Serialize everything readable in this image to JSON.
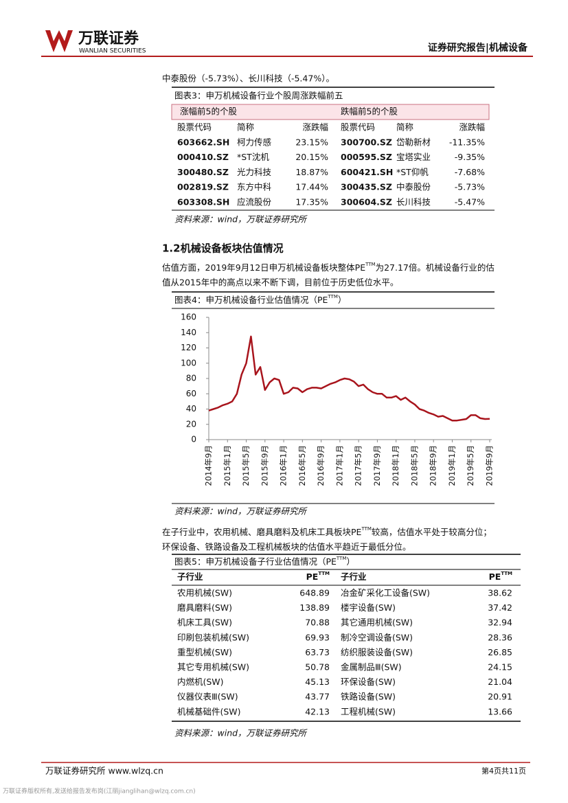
{
  "header": {
    "company": "万联证券",
    "company_en": "WANLIAN SECURITIES",
    "report": "证券研究报告",
    "sector": "机械设备"
  },
  "intro": "中泰股份（-5.73%）、长川科技（-5.47%）。",
  "table3": {
    "title": "图表3：申万机械设备行业个股周涨跌幅前五",
    "groups": [
      "涨幅前5的个股",
      "跌幅前5的个股"
    ],
    "columns": [
      "股票代码",
      "简称",
      "涨跌幅",
      "股票代码",
      "简称",
      "涨跌幅"
    ],
    "rows": [
      [
        "603662.SH",
        "柯力传感",
        "23.15%",
        "300700.SZ",
        "岱勒新材",
        "-11.35%"
      ],
      [
        "000410.SZ",
        "*ST沈机",
        "20.15%",
        "000595.SZ",
        "宝塔实业",
        "-9.35%"
      ],
      [
        "300480.SZ",
        "光力科技",
        "18.87%",
        "600421.SH",
        "*ST仰帆",
        "-7.68%"
      ],
      [
        "002819.SZ",
        "东方中科",
        "17.44%",
        "300435.SZ",
        "中泰股份",
        "-5.73%"
      ],
      [
        "603308.SH",
        "应流股份",
        "17.35%",
        "300604.SZ",
        "长川科技",
        "-5.47%"
      ]
    ],
    "source": "资料来源：wind，万联证券研究所"
  },
  "section": {
    "heading": "1.2机械设备板块估值情况",
    "para1": [
      "估值方面，2019年9月12日申万机械设备板块整体PE",
      "TTM",
      "为27.17倍。机械设备行业的估",
      "值从2015年中的高点以来不断下调，目前位于历史低位水平。"
    ]
  },
  "figure4": {
    "title": [
      "图表4：申万机械设备行业估值情况（PE",
      "TTM",
      "）"
    ],
    "source": "资料来源：wind，万联证券研究所"
  },
  "chart_data": {
    "type": "line",
    "color": "#a8141c",
    "categories": [
      "2014年9月",
      null,
      null,
      null,
      "2015年1月",
      null,
      null,
      null,
      "2015年5月",
      null,
      null,
      null,
      "2015年9月",
      null,
      null,
      null,
      "2016年1月",
      null,
      null,
      null,
      "2016年5月",
      null,
      null,
      null,
      "2016年9月",
      null,
      null,
      null,
      "2017年1月",
      null,
      null,
      null,
      "2017年5月",
      null,
      null,
      null,
      "2017年9月",
      null,
      null,
      null,
      "2018年1月",
      null,
      null,
      null,
      "2018年5月",
      null,
      null,
      null,
      "2018年9月",
      null,
      null,
      null,
      "2019年1月",
      null,
      null,
      null,
      "2019年5月",
      null,
      null,
      null,
      "2019年9月"
    ],
    "values": [
      38,
      40,
      42,
      45,
      47,
      50,
      60,
      85,
      100,
      135,
      85,
      95,
      65,
      75,
      80,
      78,
      60,
      62,
      68,
      67,
      62,
      66,
      68,
      68,
      67,
      70,
      73,
      75,
      78,
      80,
      79,
      76,
      70,
      72,
      66,
      62,
      60,
      60,
      55,
      55,
      57,
      52,
      55,
      50,
      46,
      40,
      38,
      35,
      33,
      30,
      31,
      28,
      25,
      25,
      26,
      27,
      32,
      32,
      28,
      27,
      27.17
    ],
    "ylim": [
      0,
      160
    ],
    "yticks": [
      0,
      20,
      40,
      60,
      80,
      100,
      120,
      140,
      160
    ]
  },
  "para2": [
    "在子行业中，农用机械、磨具磨料及机床工具板块PE",
    "TTM",
    "较高，估值水平处于较高分位；",
    "环保设备、铁路设备及工程机械板块的估值水平趋近于最低分位。"
  ],
  "table5": {
    "title": [
      "图表5：申万机械设备子行业估值情况（PE",
      "TTM",
      "）"
    ],
    "columns": [
      "子行业",
      "PE",
      "子行业",
      "PE"
    ],
    "sup": "TTM",
    "rows": [
      [
        "农用机械(SW)",
        648.89,
        "冶金矿采化工设备(SW)",
        38.62
      ],
      [
        "磨具磨料(SW)",
        138.89,
        "楼宇设备(SW)",
        37.42
      ],
      [
        "机床工具(SW)",
        70.88,
        "其它通用机械(SW)",
        32.94
      ],
      [
        "印刷包装机械(SW)",
        69.93,
        "制冷空调设备(SW)",
        28.36
      ],
      [
        "重型机械(SW)",
        63.73,
        "纺织服装设备(SW)",
        26.85
      ],
      [
        "其它专用机械(SW)",
        50.78,
        "金属制品Ⅲ(SW)",
        24.15
      ],
      [
        "内燃机(SW)",
        45.13,
        "环保设备(SW)",
        21.04
      ],
      [
        "仪器仪表Ⅲ(SW)",
        43.77,
        "铁路设备(SW)",
        20.91
      ],
      [
        "机械基础件(SW)",
        42.13,
        "工程机械(SW)",
        13.66
      ]
    ],
    "source": "资料来源：wind，万联证券研究所"
  },
  "footer": {
    "left": "万联证券研究所 www.wlzq.cn",
    "page": "第4页共11页",
    "note": "万联证券版权所有,发送给报告发布岗(江丽jianglihan@wlzq.com.cn)"
  }
}
